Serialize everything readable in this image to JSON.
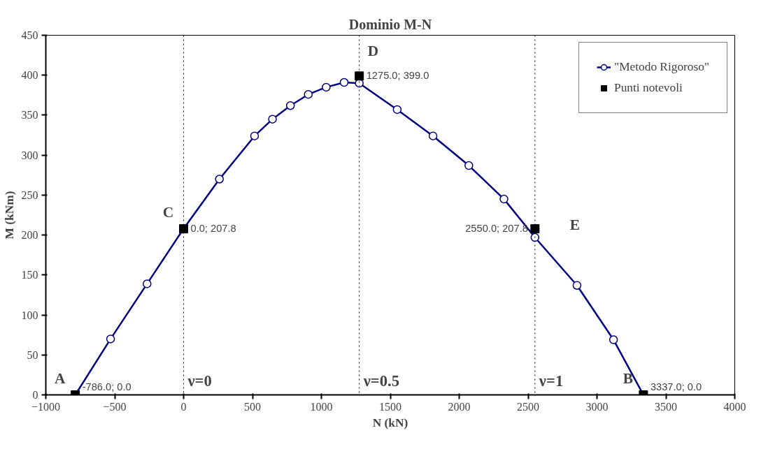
{
  "chart_data": {
    "type": "line",
    "title": "Dominio M-N",
    "xlabel": "N (kN)",
    "ylabel": "M (kNm)",
    "xlim": [
      -1000,
      4000
    ],
    "xticks": [
      -1000,
      -500,
      0,
      500,
      1000,
      1500,
      2000,
      2500,
      3000,
      3500,
      4000
    ],
    "ylim": [
      0,
      450
    ],
    "yticks": [
      0,
      50,
      100,
      150,
      200,
      250,
      300,
      350,
      400,
      450
    ],
    "grid": false,
    "legend": "top right",
    "series": [
      {
        "name": "\"Metodo Rigoroso\"",
        "color": "#000080",
        "marker": "circle",
        "x": [
          -786,
          -530,
          -265,
          0,
          260,
          515,
          645,
          775,
          905,
          1035,
          1165,
          1275,
          1550,
          1810,
          2070,
          2325,
          2550,
          2855,
          3120,
          3337
        ],
        "values": [
          0,
          70,
          139,
          208,
          270,
          324,
          345,
          362,
          376,
          385,
          391,
          390,
          357,
          324,
          287,
          245,
          197,
          137,
          69,
          0
        ]
      },
      {
        "name": "Punti notevoli",
        "type": "scatter",
        "color": "#000000",
        "marker": "square",
        "x": [
          -786,
          0,
          1275,
          2550,
          3337
        ],
        "values": [
          0,
          207.8,
          399,
          207.8,
          0
        ],
        "value_labels": [
          "-786.0; 0.0",
          "0.0; 207.8",
          "1275.0; 399.0",
          "2550.0; 207.8",
          "3337.0; 0.0"
        ]
      }
    ],
    "ref_lines": [
      {
        "axis": "x",
        "value": 0,
        "line_style": "dotted",
        "color": "#000000"
      },
      {
        "axis": "x",
        "value": 1275,
        "line_style": "dotted",
        "color": "#000000"
      },
      {
        "axis": "x",
        "value": 2550,
        "line_style": "dotted",
        "color": "#000000"
      }
    ],
    "annotations": [
      {
        "text": "A",
        "x": -786,
        "y": 0
      },
      {
        "text": "C",
        "x": 0,
        "y": 207.8
      },
      {
        "text": "D",
        "x": 1275,
        "y": 399
      },
      {
        "text": "E",
        "x": 2550,
        "y": 207.8
      },
      {
        "text": "B",
        "x": 3337,
        "y": 0
      },
      {
        "text": "ν=0",
        "x": 0,
        "y": 0
      },
      {
        "text": "ν=0.5",
        "x": 1275,
        "y": 0
      },
      {
        "text": "ν=1",
        "x": 2550,
        "y": 0
      }
    ]
  }
}
